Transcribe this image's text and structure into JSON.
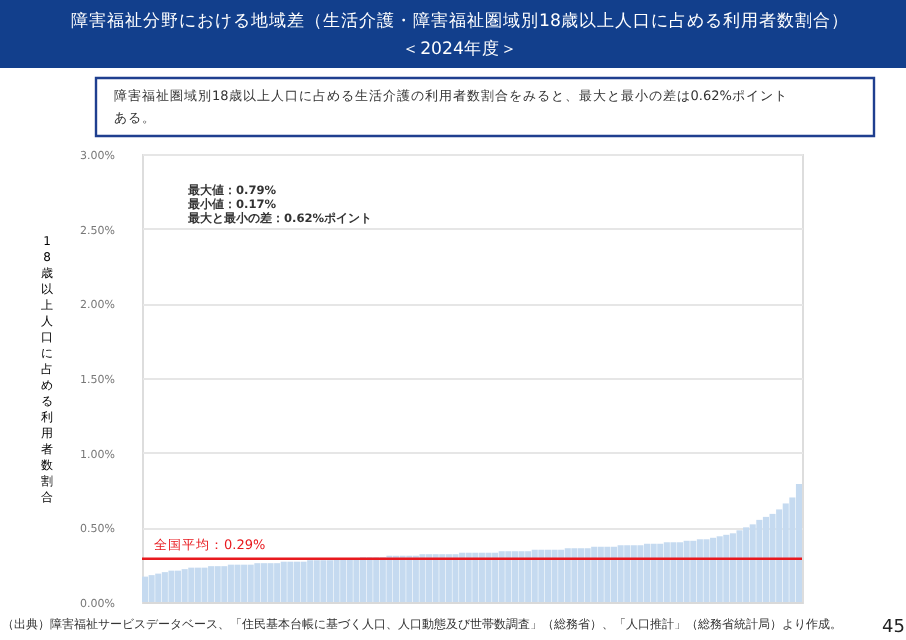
{
  "chart_data": {
    "type": "bar",
    "title": "障害福祉分野における地域差（生活介護・障害福祉圏域別18歳以上人口に占める利用者数割合）",
    "subtitle": "＜2024年度＞",
    "ylabel": "18歳以上人口に占める利用者数割合",
    "categories": [
      null,
      null,
      null,
      null,
      null,
      null,
      null,
      null,
      null,
      null,
      null,
      null,
      null,
      null,
      null,
      null,
      null,
      null,
      null,
      null,
      null,
      null,
      null,
      null,
      null,
      null,
      null,
      null,
      null,
      null,
      null,
      null,
      null,
      null,
      null,
      null,
      null,
      null,
      null,
      null,
      null,
      null,
      null,
      null,
      null,
      null,
      null,
      null,
      null,
      null,
      null,
      null,
      null,
      null,
      null,
      null,
      null,
      null,
      null,
      null,
      null,
      null,
      null,
      null,
      null,
      null,
      null,
      null,
      null,
      null,
      null,
      null,
      null,
      null,
      null,
      null,
      null,
      null,
      null,
      null,
      null,
      null,
      null,
      null,
      null,
      null,
      null,
      null,
      null,
      null,
      null,
      null,
      null,
      null,
      null,
      null,
      null,
      null,
      null,
      null
    ],
    "values": [
      0.17,
      0.18,
      0.19,
      0.2,
      0.21,
      0.21,
      0.22,
      0.23,
      0.23,
      0.23,
      0.24,
      0.24,
      0.24,
      0.25,
      0.25,
      0.25,
      0.25,
      0.26,
      0.26,
      0.26,
      0.26,
      0.27,
      0.27,
      0.27,
      0.27,
      0.28,
      0.28,
      0.28,
      0.28,
      0.29,
      0.29,
      0.29,
      0.29,
      0.3,
      0.3,
      0.3,
      0.3,
      0.31,
      0.31,
      0.31,
      0.31,
      0.31,
      0.32,
      0.32,
      0.32,
      0.32,
      0.32,
      0.32,
      0.33,
      0.33,
      0.33,
      0.33,
      0.33,
      0.33,
      0.34,
      0.34,
      0.34,
      0.34,
      0.34,
      0.35,
      0.35,
      0.35,
      0.35,
      0.35,
      0.36,
      0.36,
      0.36,
      0.36,
      0.37,
      0.37,
      0.37,
      0.37,
      0.38,
      0.38,
      0.38,
      0.38,
      0.39,
      0.39,
      0.39,
      0.4,
      0.4,
      0.4,
      0.41,
      0.41,
      0.42,
      0.42,
      0.43,
      0.44,
      0.45,
      0.46,
      0.48,
      0.5,
      0.52,
      0.55,
      0.57,
      0.59,
      0.62,
      0.66,
      0.7,
      0.79
    ],
    "color": "#c5daf0",
    "ylim": [
      0,
      3
    ],
    "yticks": [
      {
        "value": 0,
        "label": "0.00%"
      },
      {
        "value": 0.5,
        "label": "0.50%"
      },
      {
        "value": 1,
        "label": "1.00%"
      },
      {
        "value": 1.5,
        "label": "1.50%"
      },
      {
        "value": 2,
        "label": "2.00%"
      },
      {
        "value": 2.5,
        "label": "2.50%"
      },
      {
        "value": 3,
        "label": "3.00%"
      }
    ],
    "grid": "y",
    "tick_labels": "y",
    "ref_lines": [
      {
        "axis": "y",
        "value": 0.29,
        "label": "全国平均：0.29%",
        "color": "#e8191e"
      }
    ],
    "annotations": [
      "障害福祉圏域別18歳以上人口に占める生活介護の利用者数割合をみると、最大と最小の差は0.62%ポイントある。",
      "最大値：0.79%",
      "最小値：0.17%",
      "最大と最小の差：0.62%ポイント",
      "（出典）障害福祉サービスデータベース、「住民基本台帳に基づく人口、人口動態及び世帯数調査」（総務省）、「人口推計」（総務省統計局）より作成。",
      "45"
    ]
  }
}
